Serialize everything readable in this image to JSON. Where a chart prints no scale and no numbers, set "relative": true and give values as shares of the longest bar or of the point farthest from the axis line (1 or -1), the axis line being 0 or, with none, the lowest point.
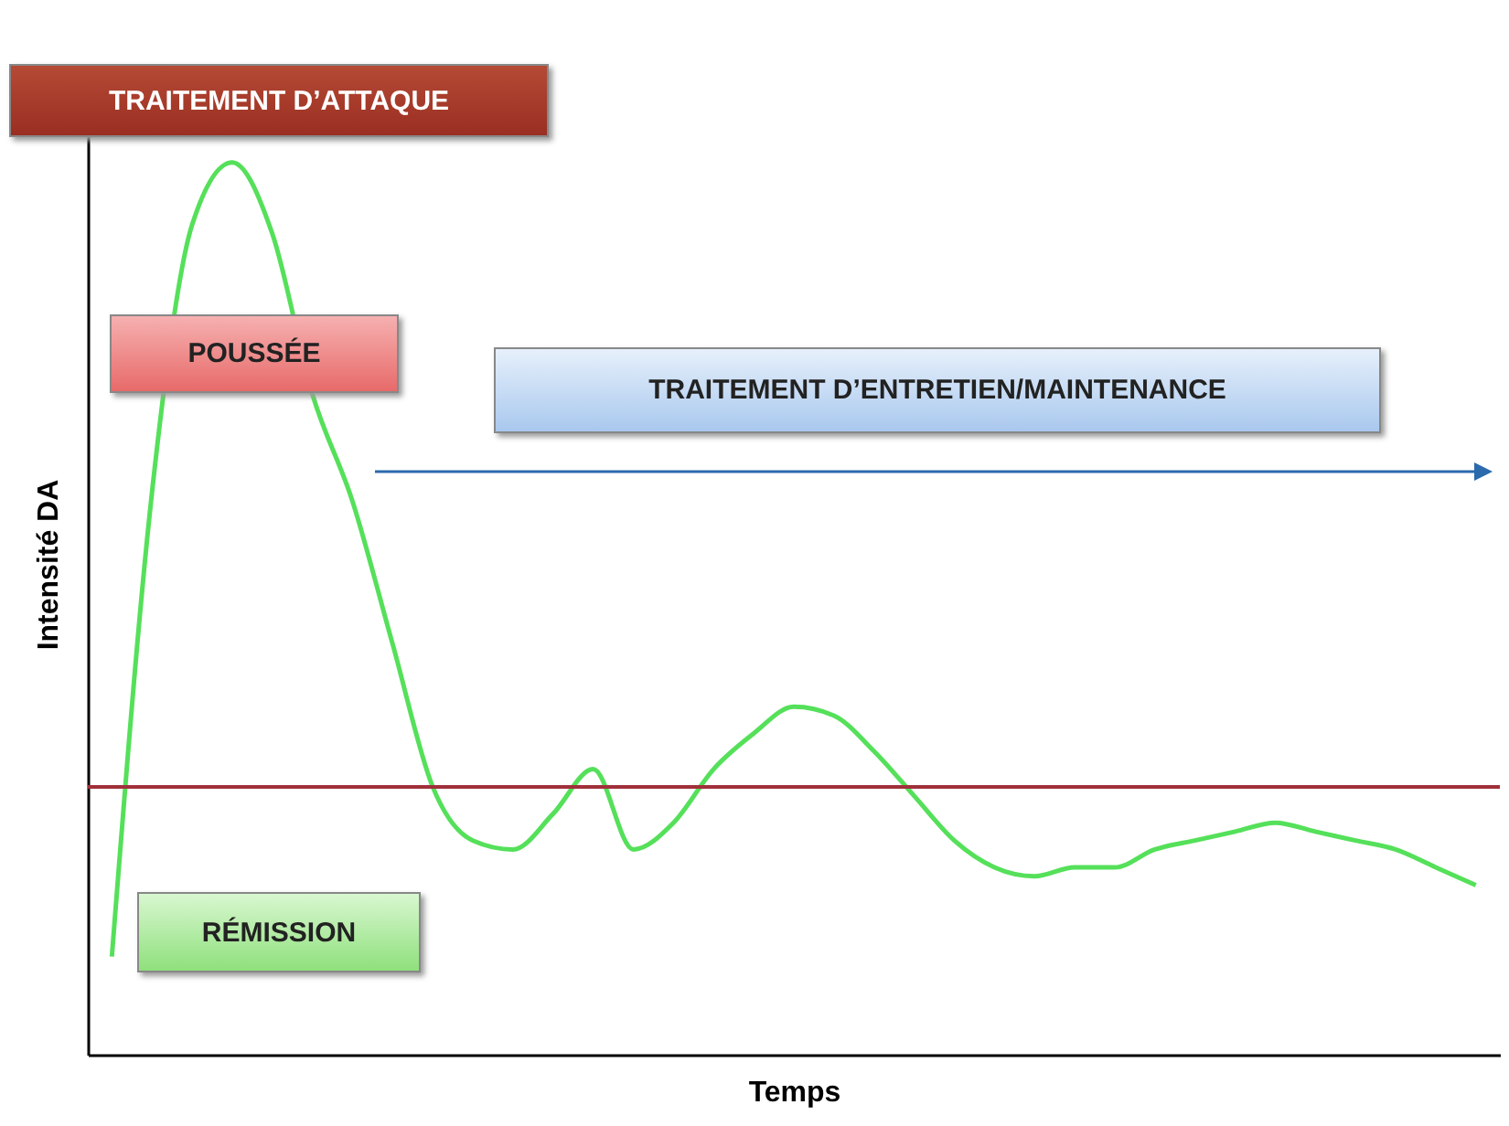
{
  "chart_data": {
    "type": "line",
    "relative": true,
    "xlabel": "Temps",
    "ylabel": "Intensité DA",
    "annotations": [
      "TRAITEMENT D’ATTAQUE",
      "POUSSÉE",
      "TRAITEMENT D’ENTRETIEN/MAINTENANCE",
      "RÉMISSION"
    ],
    "categories": [
      null,
      null,
      null,
      null,
      null,
      null,
      null,
      null,
      null,
      null,
      null,
      null,
      null,
      null,
      null,
      null,
      null,
      null,
      null,
      null,
      null,
      null,
      null,
      null,
      null,
      null,
      null,
      null,
      null,
      null,
      null,
      null,
      null,
      null,
      null
    ],
    "series": [
      {
        "color": "#55e05a",
        "values": [
          0.11,
          0.63,
          0.93,
          1,
          0.92,
          0.74,
          0.62,
          0.46,
          0.3,
          0.24,
          0.23,
          0.27,
          0.32,
          0.23,
          0.26,
          0.32,
          0.36,
          0.39,
          0.38,
          0.34,
          0.29,
          0.24,
          0.21,
          0.2,
          0.21,
          0.21,
          0.23,
          0.24,
          0.25,
          0.26,
          0.25,
          0.24,
          0.23,
          0.21,
          0.19
        ]
      }
    ],
    "ref_lines": [
      {
        "axis": "y",
        "value": 0.3,
        "color": "#a0303a"
      }
    ],
    "grid": false
  }
}
